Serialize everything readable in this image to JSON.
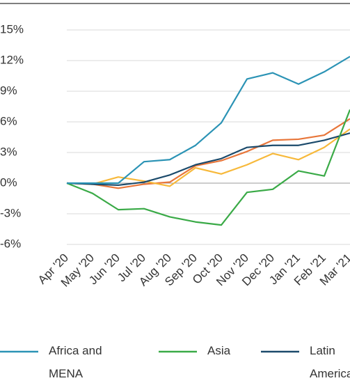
{
  "chart_data": {
    "type": "line",
    "categories": [
      "Apr '20",
      "May '20",
      "Jun '20",
      "Jul '20",
      "Aug '20",
      "Sep '20",
      "Oct '20",
      "Nov '20",
      "Dec '20",
      "Jan '21",
      "Feb '21",
      "Mar '21"
    ],
    "series": [
      {
        "color": "#e8763a",
        "values": [
          0,
          -0.1,
          -0.5,
          -0.1,
          0.1,
          1.7,
          2.2,
          3.1,
          4.2,
          4.3,
          4.7,
          6.3
        ]
      },
      {
        "color": "#f7b93b",
        "values": [
          0,
          -0.1,
          0.6,
          0.2,
          -0.3,
          1.5,
          0.9,
          1.8,
          2.9,
          2.3,
          3.5,
          5.3
        ]
      },
      {
        "name": "Latin America",
        "color": "#1b4a6b",
        "values": [
          0,
          -0.1,
          -0.2,
          0.1,
          0.8,
          1.8,
          2.4,
          3.5,
          3.7,
          3.7,
          4.2,
          4.9
        ]
      },
      {
        "name": "Asia",
        "color": "#3aaa47",
        "values": [
          0,
          -1.0,
          -2.6,
          -2.5,
          -3.3,
          -3.8,
          -4.1,
          -0.9,
          -0.6,
          1.2,
          0.7,
          7.2
        ]
      },
      {
        "name": "Africa and MENA",
        "color": "#2b93b5",
        "values": [
          0,
          0,
          0,
          2.1,
          2.3,
          3.7,
          5.9,
          10.2,
          10.8,
          9.7,
          10.9,
          12.4
        ]
      }
    ],
    "ylim": [
      -6,
      15
    ],
    "yticks": [
      {
        "value": -6,
        "label": "-6%"
      },
      {
        "value": -3,
        "label": "-3%"
      },
      {
        "value": 0,
        "label": "0%"
      },
      {
        "value": 3,
        "label": "3%"
      },
      {
        "value": 6,
        "label": "6%"
      },
      {
        "value": 9,
        "label": "9%"
      },
      {
        "value": 12,
        "label": "12%"
      },
      {
        "value": 15,
        "label": "15%"
      }
    ],
    "grid": true
  }
}
